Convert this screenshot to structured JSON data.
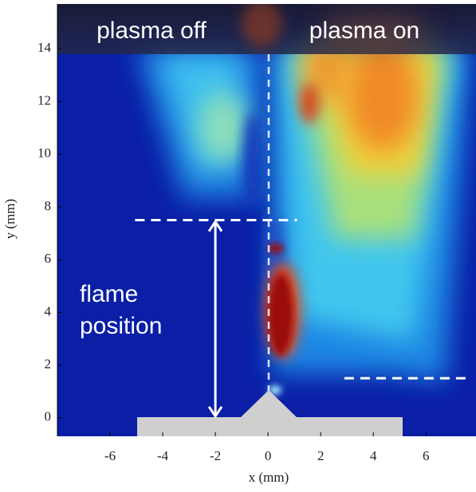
{
  "chart_data": {
    "type": "image",
    "xlabel": "x (mm)",
    "ylabel": "y (mm)",
    "xlim": [
      -8,
      7.9
    ],
    "ylim": [
      -0.7,
      15.7
    ],
    "xticks": [
      -6,
      -4,
      -2,
      0,
      2,
      4,
      6
    ],
    "yticks": [
      0,
      2,
      4,
      6,
      8,
      10,
      12,
      14
    ],
    "annotations": [
      "plasma off",
      "plasma on",
      "flame position"
    ],
    "reference_lines": [
      {
        "y": 7.5,
        "x": [
          -5.05,
          1.1
        ]
      },
      {
        "y": 1.5,
        "x": [
          2.9,
          7.7
        ]
      }
    ],
    "arrow": {
      "x": -2,
      "y": [
        0,
        7.5
      ]
    }
  }
}
